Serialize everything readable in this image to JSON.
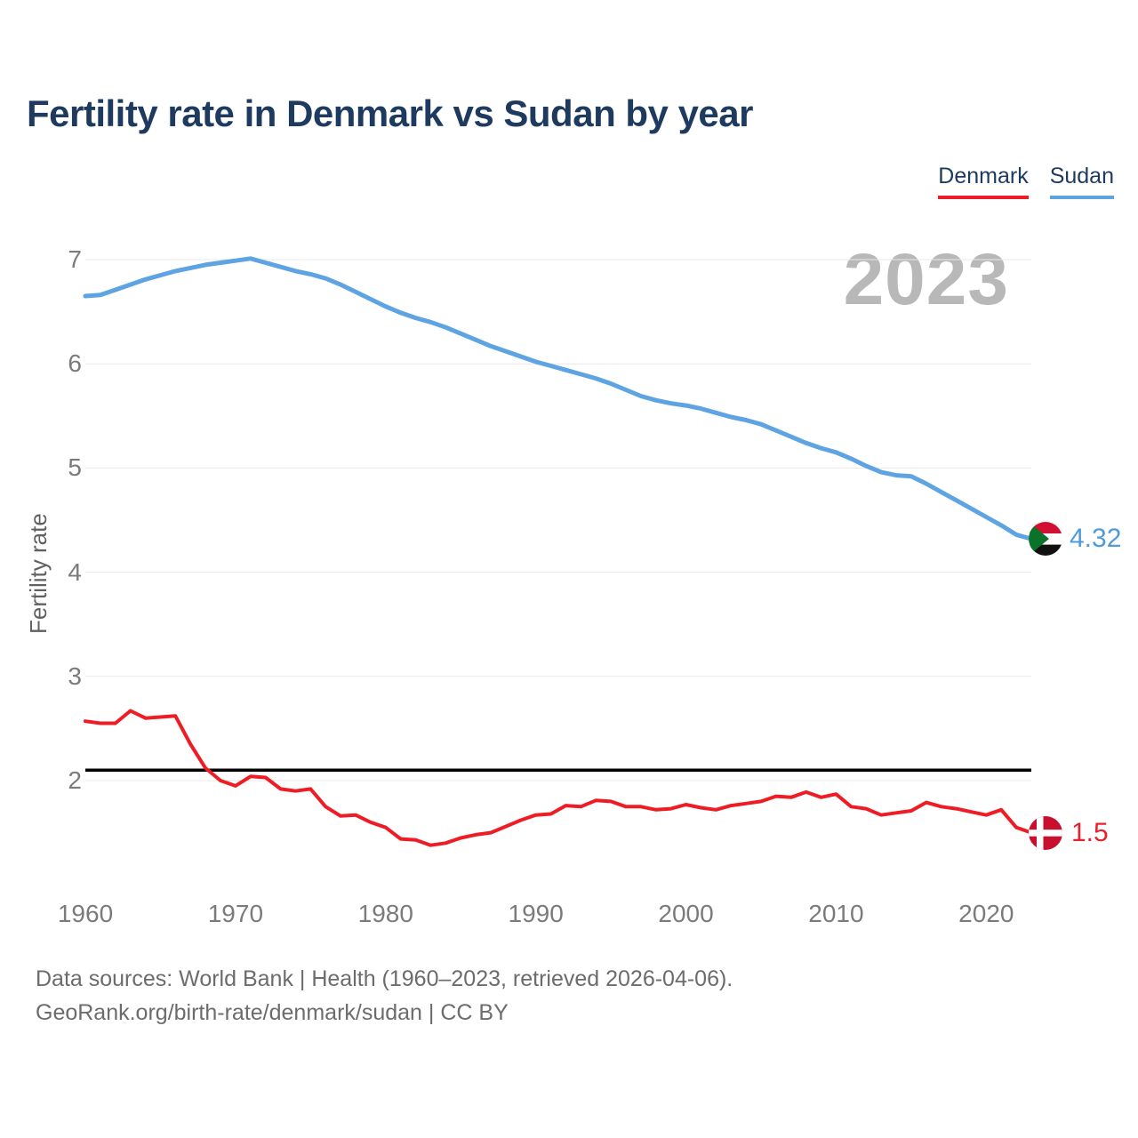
{
  "title": "Fertility rate in Denmark vs Sudan by year",
  "legend": {
    "items": [
      {
        "label": "Denmark",
        "color": "#ee1c25"
      },
      {
        "label": "Sudan",
        "color": "#5ea3e2"
      }
    ]
  },
  "watermark": "2023",
  "y_axis": {
    "label": "Fertility rate",
    "ticks": [
      7,
      6,
      5,
      4,
      3,
      2
    ]
  },
  "x_axis": {
    "ticks": [
      1960,
      1970,
      1980,
      1990,
      2000,
      2010,
      2020
    ]
  },
  "end_labels": [
    {
      "series": "Sudan",
      "value": "4.32",
      "color": "#4f9ad8",
      "flag": "sudan-flag"
    },
    {
      "series": "Denmark",
      "value": "1.5",
      "color": "#e8212d",
      "flag": "denmark-flag"
    }
  ],
  "footer": {
    "line1": "Data sources: World Bank | Health (1960–2023, retrieved 2026-04-06).",
    "line2": "GeoRank.org/birth-rate/denmark/sudan | CC BY"
  },
  "chart_data": {
    "type": "line",
    "title": "Fertility rate in Denmark vs Sudan by year",
    "xlabel": "",
    "ylabel": "Fertility rate",
    "xlim": [
      1960,
      2023
    ],
    "ylim": [
      1.3,
      7.05
    ],
    "x_ticks": [
      1960,
      1970,
      1980,
      1990,
      2000,
      2010,
      2020
    ],
    "y_ticks": [
      7,
      6,
      5,
      4,
      3,
      2
    ],
    "grid": "horizontal",
    "legend_position": "top-right",
    "reference_line": {
      "value": 2.1,
      "color": "#000000"
    },
    "x": [
      1960,
      1961,
      1962,
      1963,
      1964,
      1965,
      1966,
      1967,
      1968,
      1969,
      1970,
      1971,
      1972,
      1973,
      1974,
      1975,
      1976,
      1977,
      1978,
      1979,
      1980,
      1981,
      1982,
      1983,
      1984,
      1985,
      1986,
      1987,
      1988,
      1989,
      1990,
      1991,
      1992,
      1993,
      1994,
      1995,
      1996,
      1997,
      1998,
      1999,
      2000,
      2001,
      2002,
      2003,
      2004,
      2005,
      2006,
      2007,
      2008,
      2009,
      2010,
      2011,
      2012,
      2013,
      2014,
      2015,
      2016,
      2017,
      2018,
      2019,
      2020,
      2021,
      2022,
      2023
    ],
    "series": [
      {
        "name": "Sudan",
        "color": "#5ea3e2",
        "end_value": 4.32,
        "values": [
          6.65,
          6.66,
          6.71,
          6.76,
          6.81,
          6.85,
          6.89,
          6.92,
          6.95,
          6.97,
          6.99,
          7.01,
          6.97,
          6.93,
          6.89,
          6.86,
          6.82,
          6.76,
          6.69,
          6.62,
          6.55,
          6.49,
          6.44,
          6.4,
          6.35,
          6.29,
          6.23,
          6.17,
          6.12,
          6.07,
          6.02,
          5.98,
          5.94,
          5.9,
          5.86,
          5.81,
          5.75,
          5.69,
          5.65,
          5.62,
          5.6,
          5.57,
          5.53,
          5.49,
          5.46,
          5.42,
          5.36,
          5.3,
          5.24,
          5.19,
          5.15,
          5.09,
          5.02,
          4.96,
          4.93,
          4.92,
          4.85,
          4.77,
          4.69,
          4.61,
          4.53,
          4.45,
          4.36,
          4.32
        ]
      },
      {
        "name": "Denmark",
        "color": "#ee1c25",
        "end_value": 1.5,
        "values": [
          2.57,
          2.55,
          2.55,
          2.67,
          2.6,
          2.61,
          2.62,
          2.35,
          2.12,
          2.0,
          1.95,
          2.04,
          2.03,
          1.92,
          1.9,
          1.92,
          1.75,
          1.66,
          1.67,
          1.6,
          1.55,
          1.44,
          1.43,
          1.38,
          1.4,
          1.45,
          1.48,
          1.5,
          1.56,
          1.62,
          1.67,
          1.68,
          1.76,
          1.75,
          1.81,
          1.8,
          1.75,
          1.75,
          1.72,
          1.73,
          1.77,
          1.74,
          1.72,
          1.76,
          1.78,
          1.8,
          1.85,
          1.84,
          1.89,
          1.84,
          1.87,
          1.75,
          1.73,
          1.67,
          1.69,
          1.71,
          1.79,
          1.75,
          1.73,
          1.7,
          1.67,
          1.72,
          1.55,
          1.5
        ]
      }
    ]
  }
}
